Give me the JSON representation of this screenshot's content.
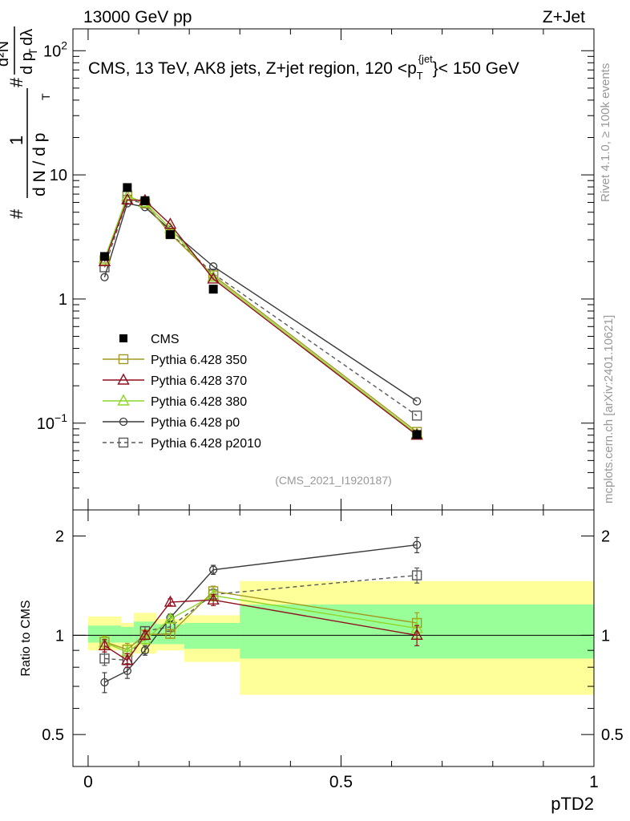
{
  "header": {
    "left": "13000 GeV pp",
    "right": "Z+Jet"
  },
  "side": {
    "rivet": "Rivet 4.1.0, ≥ 100k events",
    "url": "mcplots.cern.ch [arXiv:2401.10621]"
  },
  "chart_data": [
    {
      "type": "line",
      "panel": "main",
      "title": "CMS, 13 TeV, AK8 jets, Z+jet region, 120 < p_T^{jet} < 150 GeV",
      "title_parts": {
        "pre": "CMS, 13 TeV, AK8 jets, Z+jet region, 120 <p",
        "sub": "T",
        "sup": "{jet",
        "post": "}< 150 GeV"
      },
      "ylabel": "1 / (d N / d p_T) · d²N / (d p_T dλ)",
      "ylabel_parts": {
        "hash": "#",
        "one": "1",
        "den": "d N / d p",
        "num": "d²N",
        "numden": "d p",
        "sub": "T",
        "lam": "dλ"
      },
      "yscale": "log",
      "ylim": [
        0.02,
        150
      ],
      "xlim": [
        -0.03,
        1.0
      ],
      "yticks": [
        {
          "value": 0.1,
          "base": "10",
          "exp": "−1"
        },
        {
          "value": 1,
          "label": "1"
        },
        {
          "value": 10,
          "label": "10"
        },
        {
          "value": 100,
          "base": "10",
          "exp": "2"
        }
      ],
      "watermark": "(CMS_2021_I1920187)",
      "legend_position": "center-left",
      "x": [
        0.0325,
        0.0775,
        0.1125,
        0.1625,
        0.2475,
        0.65
      ],
      "series": [
        {
          "name": "CMS",
          "color": "#000000",
          "marker": "filled-square",
          "values": [
            2.2,
            7.9,
            6.2,
            3.3,
            1.2,
            0.081
          ]
        },
        {
          "name": "Pythia 6.428 350",
          "color": "#a09a1e",
          "marker": "open-square",
          "values": [
            2.05,
            6.8,
            5.9,
            3.35,
            1.55,
            0.085
          ]
        },
        {
          "name": "Pythia 6.428 370",
          "color": "#8f0f1f",
          "marker": "open-triangle",
          "values": [
            2.0,
            6.3,
            6.2,
            4.0,
            1.45,
            0.08
          ]
        },
        {
          "name": "Pythia 6.428 380",
          "color": "#8ed62a",
          "marker": "open-triangle",
          "values": [
            2.1,
            6.7,
            6.0,
            3.7,
            1.5,
            0.082
          ]
        },
        {
          "name": "Pythia 6.428 p0",
          "color": "#3a3a3a",
          "marker": "open-circle",
          "values": [
            1.5,
            5.9,
            5.5,
            3.6,
            1.83,
            0.15
          ]
        },
        {
          "name": "Pythia 6.428 p2010",
          "color": "#585858",
          "marker": "open-square-dashed",
          "values": [
            1.8,
            6.3,
            5.9,
            3.4,
            1.6,
            0.115
          ]
        }
      ]
    },
    {
      "type": "line",
      "panel": "ratio",
      "ylabel": "Ratio to CMS",
      "yscale": "log",
      "ylim": [
        0.4,
        2.4
      ],
      "xlabel": "pTD2",
      "xlim": [
        -0.03,
        1.0
      ],
      "xticks": [
        {
          "value": 0,
          "label": "0"
        },
        {
          "value": 0.5,
          "label": "0.5"
        },
        {
          "value": 1,
          "label": "1"
        }
      ],
      "yticks": [
        {
          "value": 0.5,
          "label": "0.5"
        },
        {
          "value": 1,
          "label": "1"
        },
        {
          "value": 2,
          "label": "2"
        }
      ],
      "x": [
        0.0325,
        0.0775,
        0.1125,
        0.1625,
        0.2475,
        0.65
      ],
      "bands": [
        {
          "x0": 0.0,
          "x1": 0.065,
          "lo1": 0.95,
          "hi1": 1.07,
          "lo2": 0.9,
          "hi2": 1.14
        },
        {
          "x0": 0.065,
          "x1": 0.09,
          "lo1": 0.95,
          "hi1": 1.06,
          "lo2": 0.92,
          "hi2": 1.09
        },
        {
          "x0": 0.09,
          "x1": 0.135,
          "lo1": 0.94,
          "hi1": 1.1,
          "lo2": 0.88,
          "hi2": 1.17
        },
        {
          "x0": 0.135,
          "x1": 0.19,
          "lo1": 0.94,
          "hi1": 1.08,
          "lo2": 0.9,
          "hi2": 1.12
        },
        {
          "x0": 0.19,
          "x1": 0.3,
          "lo1": 0.91,
          "hi1": 1.09,
          "lo2": 0.83,
          "hi2": 1.15
        },
        {
          "x0": 0.3,
          "x1": 1.0,
          "lo1": 0.85,
          "hi1": 1.24,
          "lo2": 0.66,
          "hi2": 1.46
        }
      ],
      "band_colors": {
        "inner": "#99ff99",
        "outer": "#ffff99"
      },
      "series": [
        {
          "name": "Pythia 6.428 350",
          "color": "#a09a1e",
          "marker": "open-square",
          "values": [
            0.955,
            0.905,
            1.005,
            1.01,
            1.36,
            1.09
          ],
          "errors": [
            0.04,
            0.04,
            0.03,
            0.03,
            0.05,
            0.08
          ]
        },
        {
          "name": "Pythia 6.428 370",
          "color": "#8f0f1f",
          "marker": "open-triangle",
          "values": [
            0.93,
            0.84,
            1.0,
            1.26,
            1.28,
            1.0
          ],
          "errors": [
            0.04,
            0.04,
            0.03,
            0.03,
            0.05,
            0.07
          ]
        },
        {
          "name": "Pythia 6.428 380",
          "color": "#8ed62a",
          "marker": "open-triangle",
          "values": [
            0.95,
            0.89,
            0.97,
            1.12,
            1.32,
            1.05
          ],
          "errors": [
            0.04,
            0.04,
            0.03,
            0.03,
            0.05,
            0.07
          ]
        },
        {
          "name": "Pythia 6.428 p0",
          "color": "#3a3a3a",
          "marker": "open-circle",
          "values": [
            0.72,
            0.78,
            0.9,
            1.13,
            1.58,
            1.88
          ],
          "errors": [
            0.05,
            0.04,
            0.03,
            0.03,
            0.05,
            0.1
          ]
        },
        {
          "name": "Pythia 6.428 p2010",
          "color": "#585858",
          "marker": "open-square-dashed",
          "values": [
            0.85,
            0.84,
            1.03,
            1.06,
            1.33,
            1.52
          ],
          "errors": [
            0.04,
            0.04,
            0.03,
            0.03,
            0.05,
            0.08
          ]
        }
      ]
    }
  ]
}
